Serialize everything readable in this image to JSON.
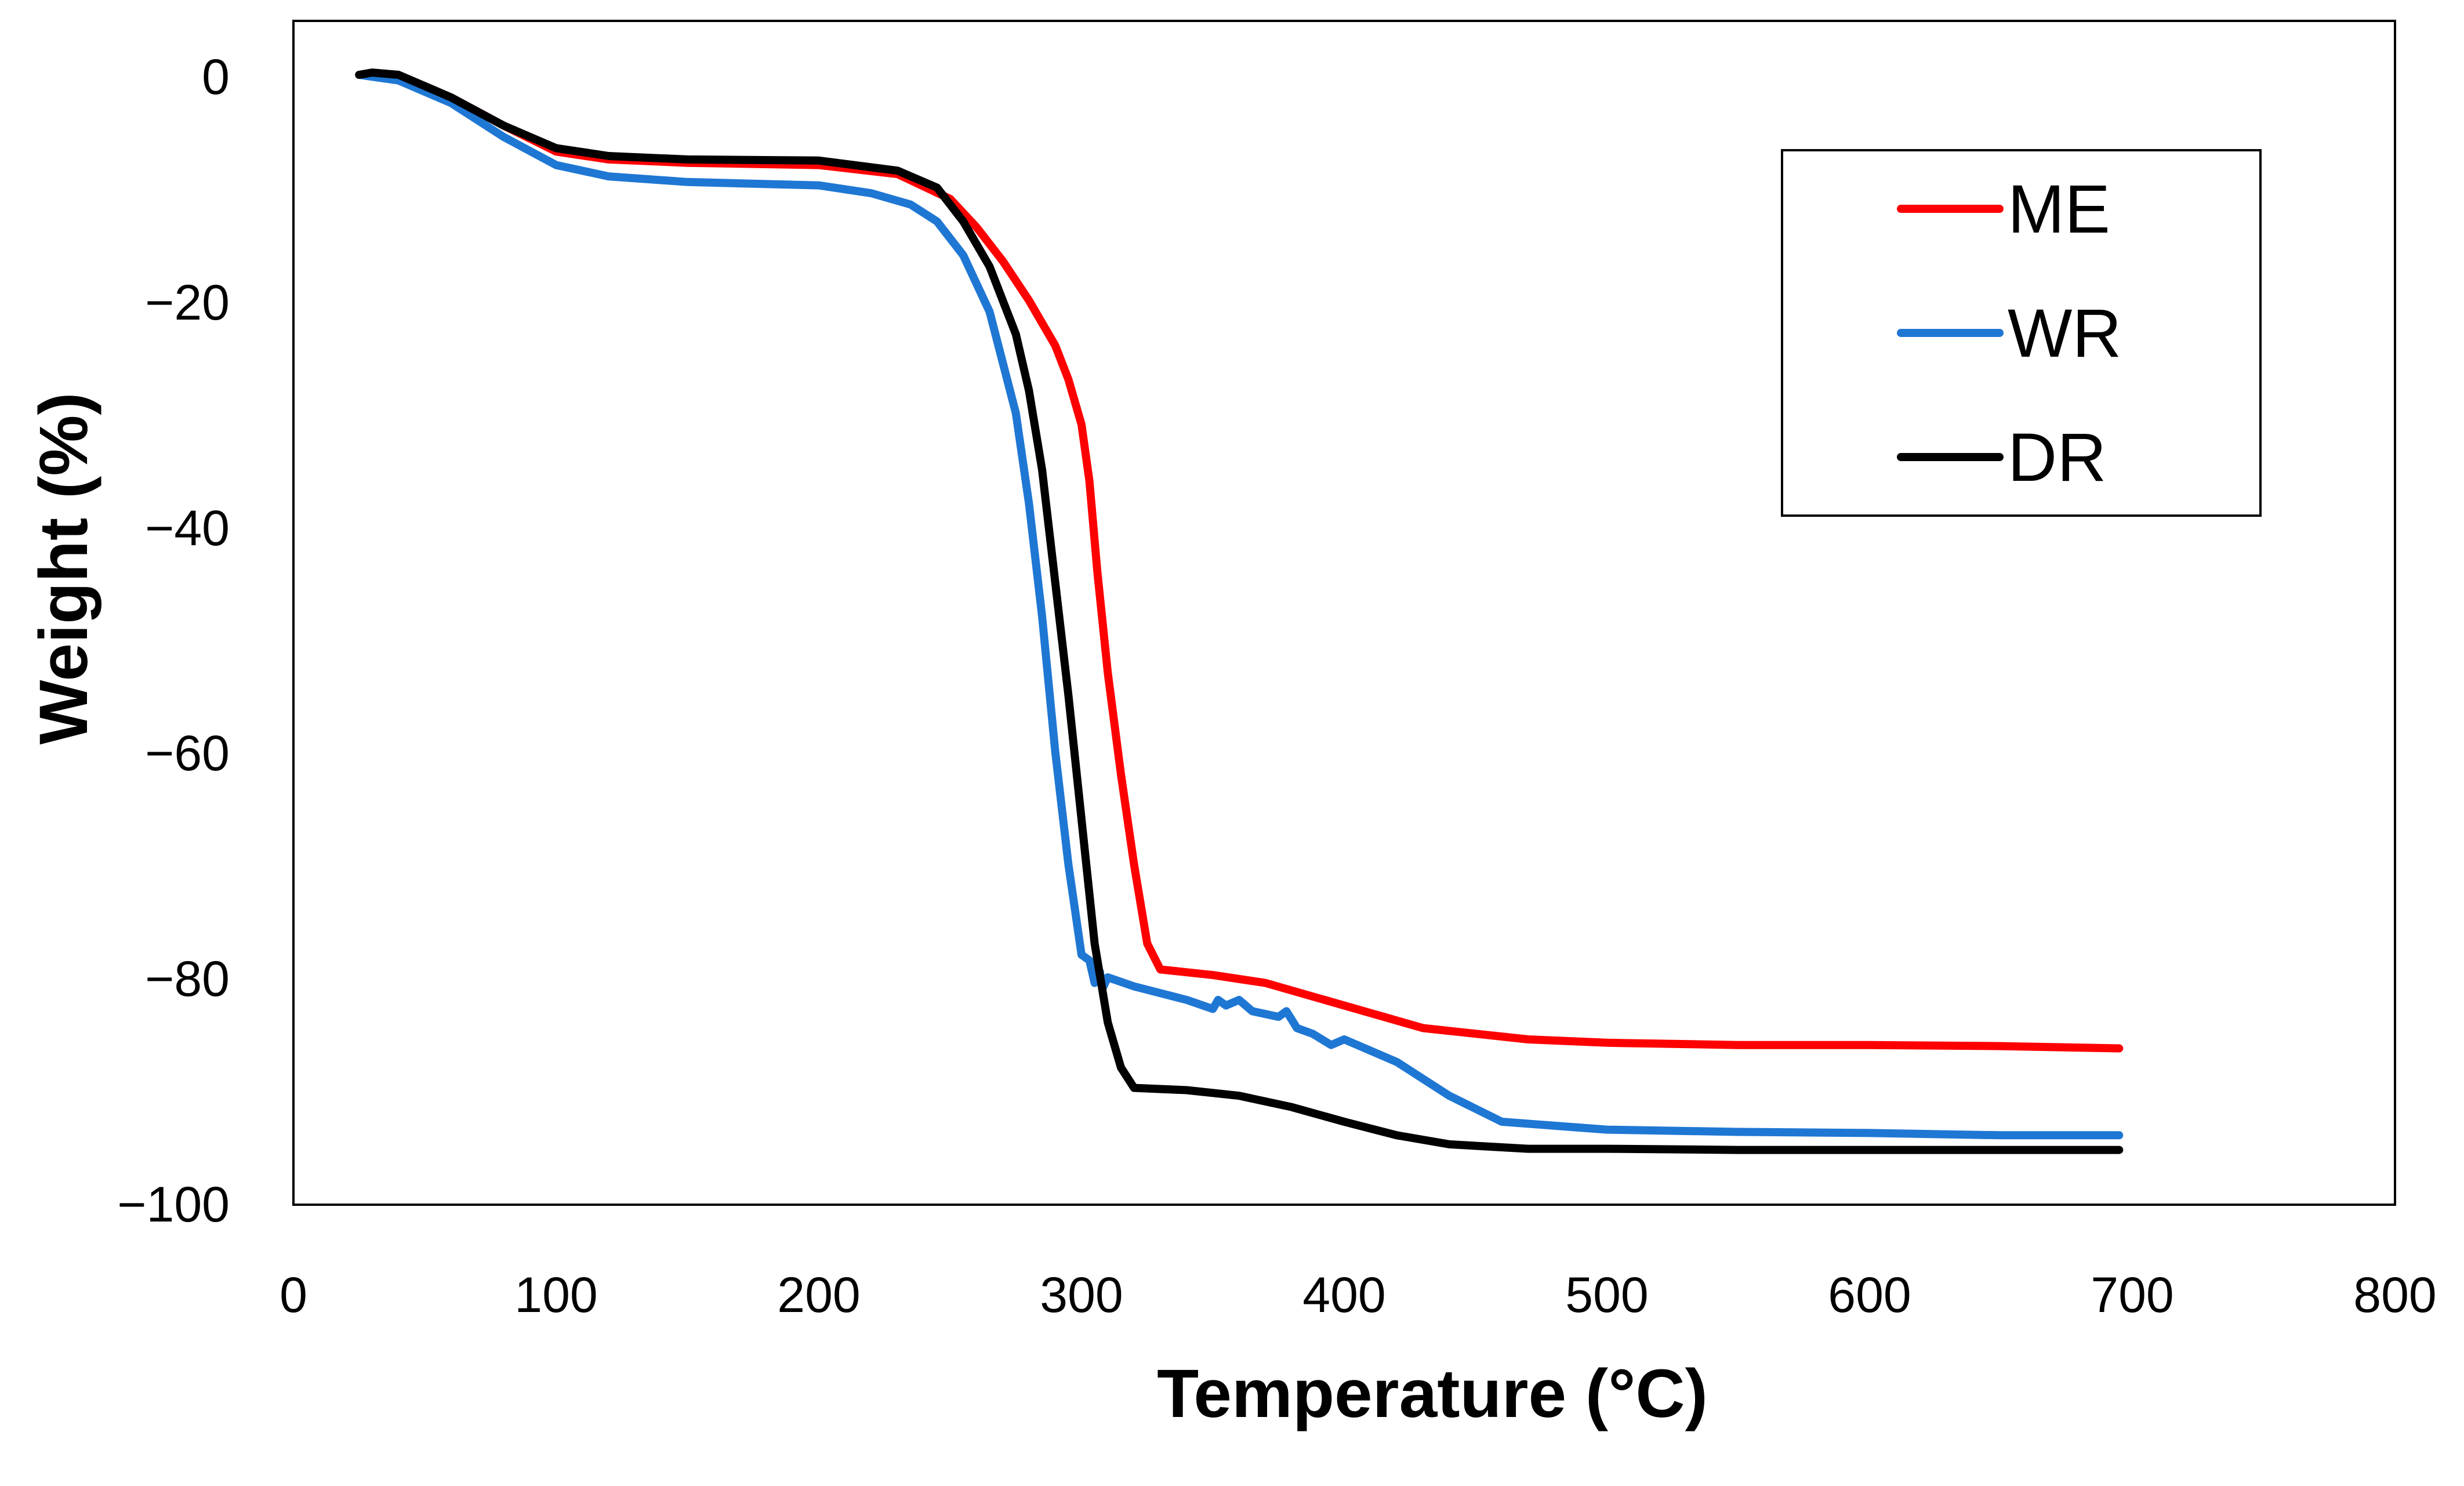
{
  "chart_data": {
    "type": "line",
    "title": "",
    "xlabel": "Temperature (°C)",
    "ylabel": "Weight (%)",
    "xlim": [
      0,
      800
    ],
    "ylim": [
      -100,
      5
    ],
    "xticks": [
      0,
      100,
      200,
      300,
      400,
      500,
      600,
      700,
      800
    ],
    "yticks": [
      0,
      -20,
      -40,
      -60,
      -80,
      -100
    ],
    "xtick_labels": [
      "0",
      "100",
      "200",
      "300",
      "400",
      "500",
      "600",
      "700",
      "800"
    ],
    "ytick_labels": [
      "0",
      "−20",
      "−40",
      "−60",
      "−80",
      "−100"
    ],
    "grid": false,
    "legend_position": "top-right",
    "series": [
      {
        "name": "ME",
        "color": "#ff0000",
        "x": [
          25,
          40,
          60,
          80,
          100,
          120,
          150,
          200,
          230,
          250,
          260,
          270,
          280,
          290,
          295,
          300,
          303,
          306,
          310,
          315,
          320,
          325,
          330,
          350,
          370,
          400,
          430,
          470,
          500,
          550,
          600,
          650,
          695
        ],
        "y": [
          0,
          -0.2,
          -2,
          -4.5,
          -6.8,
          -7.5,
          -7.8,
          -8,
          -8.8,
          -11,
          -13.5,
          -16.5,
          -20,
          -24,
          -27,
          -31,
          -36,
          -44,
          -53,
          -62,
          -70,
          -77,
          -79.3,
          -79.8,
          -80.5,
          -82.5,
          -84.5,
          -85.5,
          -85.8,
          -86,
          -86,
          -86.1,
          -86.3
        ]
      },
      {
        "name": "WR",
        "color": "#1f77d4",
        "x": [
          25,
          40,
          60,
          80,
          100,
          120,
          150,
          200,
          220,
          235,
          245,
          255,
          265,
          275,
          280,
          285,
          290,
          295,
          300,
          303,
          305,
          307,
          308,
          310,
          320,
          340,
          350,
          352,
          355,
          360,
          365,
          375,
          378,
          382,
          388,
          395,
          400,
          420,
          440,
          460,
          500,
          550,
          600,
          650,
          695
        ],
        "y": [
          0,
          -0.5,
          -2.5,
          -5.5,
          -8,
          -9,
          -9.5,
          -9.8,
          -10.5,
          -11.5,
          -13,
          -16,
          -21,
          -30,
          -38,
          -48,
          -60,
          -70,
          -78,
          -78.5,
          -80.5,
          -79.5,
          -81,
          -80,
          -80.8,
          -82,
          -82.8,
          -82,
          -82.5,
          -82,
          -83,
          -83.5,
          -83,
          -84.5,
          -85,
          -86,
          -85.5,
          -87.5,
          -90.5,
          -92.8,
          -93.5,
          -93.7,
          -93.8,
          -94,
          -94
        ]
      },
      {
        "name": "DR",
        "color": "#000000",
        "x": [
          25,
          30,
          40,
          60,
          80,
          100,
          120,
          150,
          200,
          230,
          245,
          255,
          265,
          275,
          280,
          285,
          290,
          295,
          300,
          305,
          310,
          315,
          320,
          340,
          360,
          380,
          400,
          420,
          440,
          470,
          500,
          550,
          600,
          650,
          695
        ],
        "y": [
          0,
          0.2,
          0,
          -2,
          -4.5,
          -6.5,
          -7.2,
          -7.5,
          -7.6,
          -8.5,
          -10,
          -13,
          -17,
          -23,
          -28,
          -35,
          -45,
          -55,
          -66,
          -77,
          -84,
          -88,
          -89.8,
          -90,
          -90.5,
          -91.5,
          -92.8,
          -94,
          -94.8,
          -95.2,
          -95.2,
          -95.3,
          -95.3,
          -95.3,
          -95.3
        ]
      }
    ]
  }
}
